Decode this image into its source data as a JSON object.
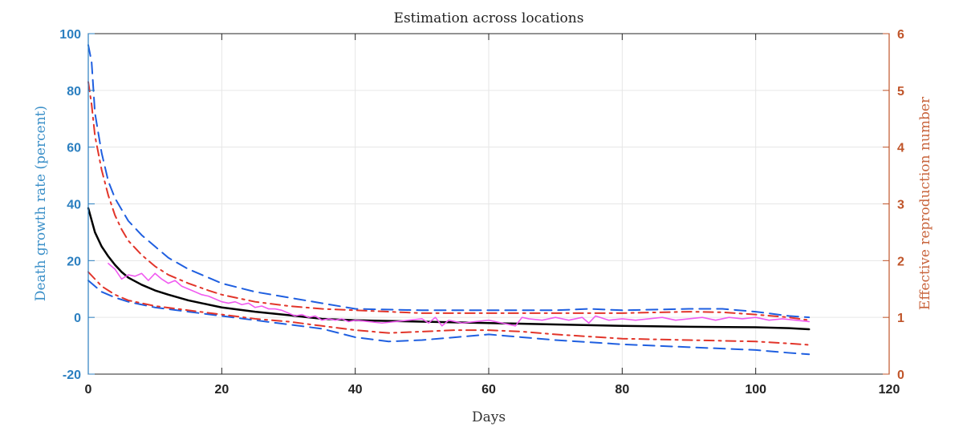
{
  "chart_data": {
    "type": "line",
    "title": "Estimation across locations",
    "xlabel": "Days",
    "ylabel_left": "Death growth rate (percent)",
    "ylabel_right": "Effective reproduction number",
    "xlim": [
      0,
      120
    ],
    "ylim_left": [
      -20,
      100
    ],
    "ylim_right": [
      0,
      6
    ],
    "x_ticks": [
      0,
      20,
      40,
      60,
      80,
      100,
      120
    ],
    "y_left_ticks": [
      -20,
      0,
      20,
      40,
      60,
      80,
      100
    ],
    "y_right_ticks": [
      0,
      1,
      2,
      3,
      4,
      5,
      6
    ],
    "grid": true,
    "legend": "none",
    "series": [
      {
        "axis": "left",
        "color": "#000000",
        "style": "solid",
        "width": 2.5,
        "points": [
          [
            0,
            38.5
          ],
          [
            1,
            30
          ],
          [
            2,
            25
          ],
          [
            3,
            21.5
          ],
          [
            4,
            18.5
          ],
          [
            5,
            16
          ],
          [
            6,
            14
          ],
          [
            8,
            11.5
          ],
          [
            10,
            9.5
          ],
          [
            12,
            8
          ],
          [
            15,
            6
          ],
          [
            20,
            3.5
          ],
          [
            25,
            2
          ],
          [
            30,
            0.8
          ],
          [
            35,
            -0.5
          ],
          [
            40,
            -1
          ],
          [
            50,
            -1.5
          ],
          [
            60,
            -2
          ],
          [
            70,
            -2.5
          ],
          [
            80,
            -3
          ],
          [
            90,
            -3.3
          ],
          [
            100,
            -3.5
          ],
          [
            105,
            -3.8
          ],
          [
            108,
            -4.2
          ]
        ]
      },
      {
        "axis": "left",
        "color": "#1f5fe0",
        "style": "dashed",
        "width": 2,
        "points": [
          [
            0,
            96
          ],
          [
            0.5,
            90
          ],
          [
            1,
            72
          ],
          [
            2,
            58
          ],
          [
            3,
            48
          ],
          [
            4,
            42
          ],
          [
            5,
            38
          ],
          [
            6,
            34
          ],
          [
            8,
            29
          ],
          [
            10,
            25
          ],
          [
            12,
            21
          ],
          [
            15,
            17
          ],
          [
            18,
            14
          ],
          [
            20,
            12
          ],
          [
            25,
            9
          ],
          [
            30,
            7
          ],
          [
            35,
            5
          ],
          [
            40,
            3
          ],
          [
            50,
            2.5
          ],
          [
            60,
            2.5
          ],
          [
            70,
            2.5
          ],
          [
            75,
            3
          ],
          [
            80,
            2.5
          ],
          [
            90,
            3
          ],
          [
            95,
            3
          ],
          [
            100,
            2
          ],
          [
            105,
            0.5
          ],
          [
            108,
            0
          ]
        ]
      },
      {
        "axis": "left",
        "color": "#1f5fe0",
        "style": "dashed",
        "width": 2,
        "points": [
          [
            0,
            13
          ],
          [
            2,
            9
          ],
          [
            4,
            7
          ],
          [
            6,
            5.5
          ],
          [
            10,
            3.5
          ],
          [
            15,
            2
          ],
          [
            20,
            0.5
          ],
          [
            25,
            -1
          ],
          [
            30,
            -2.5
          ],
          [
            35,
            -4
          ],
          [
            40,
            -7
          ],
          [
            45,
            -8.5
          ],
          [
            50,
            -8
          ],
          [
            55,
            -7
          ],
          [
            60,
            -6
          ],
          [
            65,
            -7
          ],
          [
            70,
            -8
          ],
          [
            80,
            -9.5
          ],
          [
            90,
            -10.5
          ],
          [
            100,
            -11.5
          ],
          [
            105,
            -12.5
          ],
          [
            108,
            -13
          ]
        ]
      },
      {
        "axis": "left",
        "color": "#e2352a",
        "style": "dashdot",
        "width": 2,
        "points": [
          [
            0,
            83
          ],
          [
            0.5,
            75
          ],
          [
            1,
            64
          ],
          [
            2,
            52
          ],
          [
            3,
            43
          ],
          [
            4,
            36
          ],
          [
            5,
            31
          ],
          [
            6,
            27
          ],
          [
            8,
            22
          ],
          [
            10,
            18
          ],
          [
            12,
            15
          ],
          [
            15,
            12
          ],
          [
            18,
            9.5
          ],
          [
            20,
            8
          ],
          [
            25,
            5.5
          ],
          [
            30,
            4
          ],
          [
            35,
            3
          ],
          [
            40,
            2.5
          ],
          [
            50,
            1.5
          ],
          [
            60,
            1.5
          ],
          [
            70,
            1.5
          ],
          [
            80,
            1.5
          ],
          [
            90,
            2
          ],
          [
            95,
            1.8
          ],
          [
            100,
            1
          ],
          [
            105,
            0
          ],
          [
            108,
            -1
          ]
        ]
      },
      {
        "axis": "left",
        "color": "#e2352a",
        "style": "dashdot",
        "width": 2,
        "points": [
          [
            0,
            16
          ],
          [
            2,
            11
          ],
          [
            4,
            8
          ],
          [
            6,
            6
          ],
          [
            10,
            4
          ],
          [
            15,
            2.5
          ],
          [
            20,
            1
          ],
          [
            25,
            -0.5
          ],
          [
            30,
            -1.5
          ],
          [
            35,
            -3
          ],
          [
            40,
            -4.5
          ],
          [
            45,
            -5.5
          ],
          [
            50,
            -5
          ],
          [
            55,
            -4.5
          ],
          [
            60,
            -4.5
          ],
          [
            65,
            -5
          ],
          [
            70,
            -6
          ],
          [
            80,
            -7.5
          ],
          [
            90,
            -8
          ],
          [
            100,
            -8.5
          ],
          [
            105,
            -9.2
          ],
          [
            108,
            -9.7
          ]
        ]
      },
      {
        "axis": "left",
        "color": "#f05bf0",
        "style": "solid",
        "width": 1.6,
        "points": [
          [
            3,
            19
          ],
          [
            4,
            17
          ],
          [
            5,
            13.5
          ],
          [
            6,
            15
          ],
          [
            7,
            14.5
          ],
          [
            8,
            15.5
          ],
          [
            9,
            13
          ],
          [
            10,
            15.5
          ],
          [
            11,
            13.5
          ],
          [
            12,
            12
          ],
          [
            13,
            13
          ],
          [
            14,
            11
          ],
          [
            15,
            10
          ],
          [
            16,
            9
          ],
          [
            17,
            8
          ],
          [
            18,
            7.5
          ],
          [
            19,
            6.5
          ],
          [
            20,
            5.5
          ],
          [
            21,
            5
          ],
          [
            22,
            5.5
          ],
          [
            23,
            4.5
          ],
          [
            24,
            5
          ],
          [
            25,
            3.5
          ],
          [
            26,
            4
          ],
          [
            27,
            3
          ],
          [
            28,
            3
          ],
          [
            29,
            2.5
          ],
          [
            30,
            1.5
          ],
          [
            31,
            0.5
          ],
          [
            32,
            1
          ],
          [
            33,
            0
          ],
          [
            34,
            0.5
          ],
          [
            35,
            -1
          ],
          [
            36,
            -0.5
          ],
          [
            37,
            -1
          ],
          [
            38,
            -0.5
          ],
          [
            39,
            -1.5
          ],
          [
            40,
            -1
          ],
          [
            42,
            -1.5
          ],
          [
            44,
            -2
          ],
          [
            46,
            -1.5
          ],
          [
            48,
            -1
          ],
          [
            50,
            -0.5
          ],
          [
            51,
            -2
          ],
          [
            52,
            0
          ],
          [
            53,
            -3
          ],
          [
            54,
            -1
          ],
          [
            56,
            -2
          ],
          [
            58,
            -1.5
          ],
          [
            60,
            -1
          ],
          [
            62,
            -2
          ],
          [
            64,
            -3
          ],
          [
            65,
            0
          ],
          [
            66,
            -0.5
          ],
          [
            68,
            -1
          ],
          [
            70,
            0
          ],
          [
            72,
            -1
          ],
          [
            74,
            0
          ],
          [
            75,
            -2
          ],
          [
            76,
            0.5
          ],
          [
            78,
            -1
          ],
          [
            80,
            -0.5
          ],
          [
            82,
            -1
          ],
          [
            84,
            -0.5
          ],
          [
            86,
            0
          ],
          [
            88,
            -1
          ],
          [
            90,
            -0.5
          ],
          [
            92,
            0
          ],
          [
            94,
            -1
          ],
          [
            96,
            0
          ],
          [
            98,
            -0.5
          ],
          [
            100,
            0
          ],
          [
            102,
            -1
          ],
          [
            104,
            -0.5
          ],
          [
            106,
            -1
          ],
          [
            108,
            -1.5
          ]
        ]
      }
    ]
  }
}
